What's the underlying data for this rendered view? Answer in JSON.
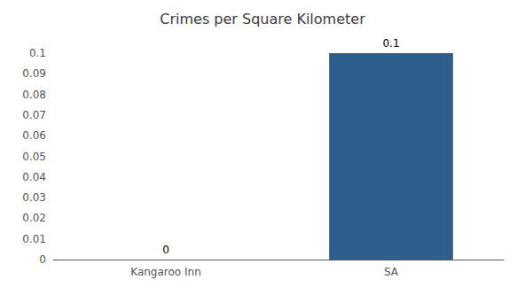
{
  "chart_data": {
    "type": "bar",
    "title": "Crimes per Square Kilometer",
    "categories": [
      "Kangaroo Inn",
      "SA"
    ],
    "values": [
      0,
      0.1
    ],
    "color": "#2e5f8c",
    "ylim": [
      0,
      0.1
    ],
    "yticks": [
      0,
      0.01,
      0.02,
      0.03,
      0.04,
      0.05,
      0.06,
      0.07,
      0.08,
      0.09,
      0.1
    ],
    "grid": false,
    "data_labels": true
  }
}
